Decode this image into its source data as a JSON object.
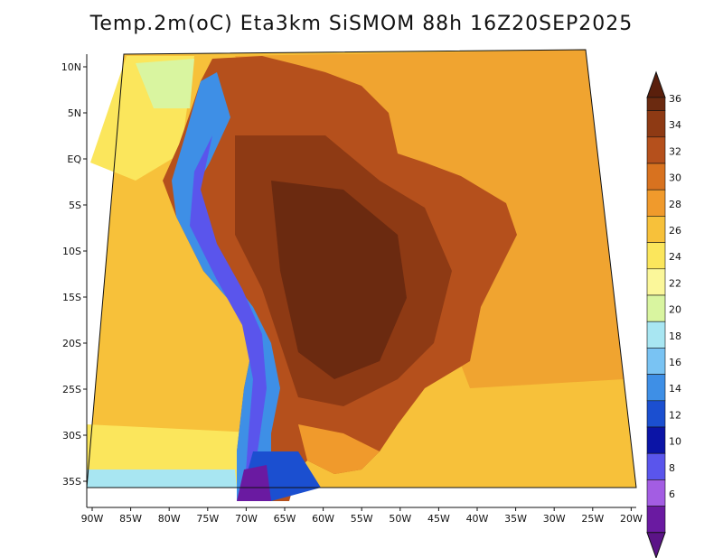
{
  "title": "Temp.2m(oC) Eta3km SiSMOM 88h 16Z20SEP2025",
  "lat_labels": [
    "10N",
    "5N",
    "EQ",
    "5S",
    "10S",
    "15S",
    "20S",
    "25S",
    "30S",
    "35S"
  ],
  "lon_labels": [
    "90W",
    "85W",
    "80W",
    "75W",
    "70W",
    "65W",
    "60W",
    "55W",
    "50W",
    "45W",
    "40W",
    "35W",
    "30W",
    "25W",
    "20W"
  ],
  "colorbar": {
    "labels": [
      "36",
      "34",
      "32",
      "30",
      "28",
      "26",
      "24",
      "22",
      "20",
      "18",
      "16",
      "14",
      "12",
      "10",
      "8",
      "6"
    ],
    "colors": [
      "#6b2a10",
      "#8e3a14",
      "#b5501c",
      "#d8721f",
      "#f09a2c",
      "#f7c13a",
      "#fbe65c",
      "#fbf79a",
      "#d9f5a0",
      "#a8e6f2",
      "#79c3f3",
      "#3e8fe6",
      "#1b4fd0",
      "#0b14a6",
      "#5a55ec",
      "#a35de3",
      "#6a1aa1"
    ],
    "top_color": "#5a1f0c",
    "bottom_color": "#5b1487"
  }
}
